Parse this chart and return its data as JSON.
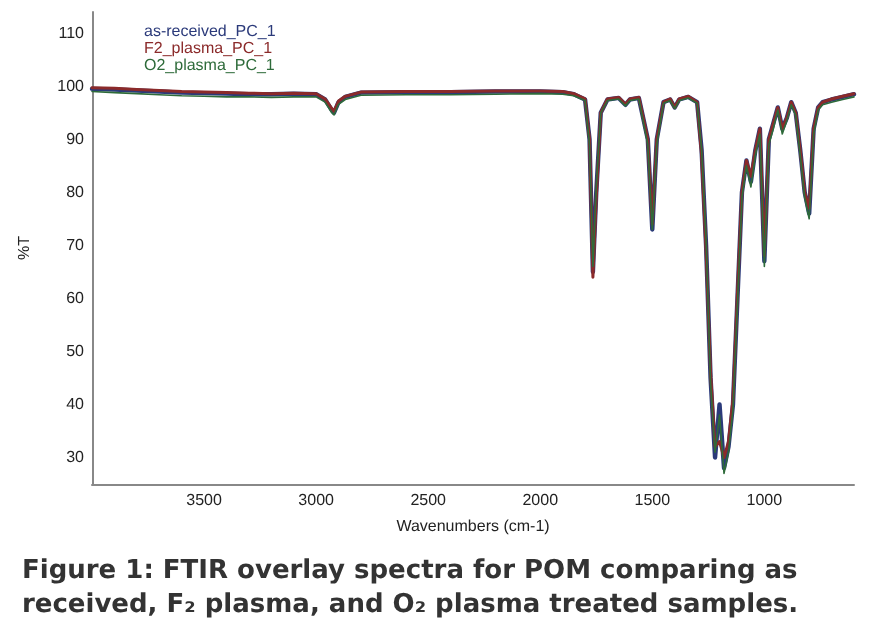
{
  "chart_data": {
    "type": "line",
    "title": "Figure 1: FTIR overlay spectra for POM comparing as received, F₂ plasma, and O₂ plasma treated samples.",
    "xlabel": "Wavenumbers (cm-1)",
    "ylabel": "%T",
    "xlim": [
      4000,
      600
    ],
    "xticks": [
      3500,
      3000,
      2500,
      2000,
      1500,
      1000
    ],
    "ylim": [
      25,
      114
    ],
    "yticks": [
      30,
      40,
      50,
      60,
      70,
      80,
      90,
      100,
      110
    ],
    "grid": false,
    "legend": "top left",
    "marker": "none",
    "line_style": "solid",
    "x": [
      4000,
      3900,
      3800,
      3700,
      3600,
      3500,
      3400,
      3300,
      3200,
      3100,
      3000,
      2960,
      2930,
      2920,
      2900,
      2870,
      2800,
      2600,
      2400,
      2200,
      2000,
      1900,
      1850,
      1800,
      1780,
      1765,
      1750,
      1730,
      1700,
      1650,
      1620,
      1600,
      1560,
      1520,
      1500,
      1480,
      1450,
      1420,
      1400,
      1380,
      1340,
      1300,
      1280,
      1260,
      1240,
      1220,
      1200,
      1180,
      1160,
      1140,
      1120,
      1100,
      1080,
      1060,
      1040,
      1020,
      1000,
      980,
      960,
      940,
      920,
      900,
      880,
      860,
      840,
      820,
      800,
      780,
      760,
      740,
      700,
      650,
      600
    ],
    "series": [
      {
        "name": "as-received_PC_1",
        "color": "#2b3a7a",
        "values": [
          99.5,
          99.4,
          99.2,
          99,
          98.8,
          98.7,
          98.6,
          98.5,
          98.5,
          98.6,
          98.5,
          97.5,
          95.5,
          95,
          97,
          98,
          98.8,
          98.9,
          98.9,
          99,
          99,
          98.9,
          98.5,
          97.5,
          90,
          65,
          80,
          95,
          97.5,
          97.8,
          96.5,
          97.5,
          97.8,
          90,
          73,
          90,
          97,
          97.5,
          96,
          97.5,
          98,
          97,
          88,
          70,
          45,
          30,
          40,
          28,
          32,
          40,
          60,
          80,
          86,
          82,
          88,
          92,
          67,
          90,
          93,
          96,
          92,
          94,
          97,
          95,
          88,
          80,
          76,
          92,
          96,
          97,
          97.5,
          98,
          98.5
        ]
      },
      {
        "name": "F2_plasma_PC_1",
        "color": "#8b2a2a",
        "values": [
          99.7,
          99.6,
          99.4,
          99.2,
          99,
          98.9,
          98.8,
          98.7,
          98.6,
          98.7,
          98.6,
          97.6,
          95.8,
          95.3,
          97.2,
          98.1,
          98.9,
          99,
          99,
          99.1,
          99.1,
          99,
          98.6,
          97.6,
          90,
          64,
          79,
          95,
          97.6,
          97.9,
          96.6,
          97.6,
          97.9,
          90,
          74,
          90,
          97,
          97.6,
          96,
          97.6,
          98.1,
          97,
          87,
          69,
          46,
          32,
          33,
          30,
          33,
          41,
          61,
          80,
          86,
          83,
          88,
          92,
          68,
          90,
          93,
          96,
          92,
          94,
          97,
          95,
          88,
          80,
          77,
          92,
          96,
          97,
          97.6,
          98.1,
          98.6
        ]
      },
      {
        "name": "O2_plasma_PC_1",
        "color": "#2e6b3a",
        "values": [
          99,
          98.8,
          98.6,
          98.4,
          98.2,
          98.1,
          98,
          98,
          97.9,
          98,
          98,
          97,
          95,
          94.6,
          96.6,
          97.5,
          98.3,
          98.4,
          98.4,
          98.5,
          98.6,
          98.5,
          98.2,
          97.3,
          89,
          66,
          81,
          95,
          97.3,
          97.6,
          96.3,
          97.3,
          97.6,
          89,
          73,
          89,
          96.8,
          97.3,
          95.8,
          97.3,
          97.8,
          96.8,
          88,
          71,
          44,
          31,
          38,
          27,
          31,
          39,
          59,
          79,
          85,
          81,
          87,
          91,
          66,
          89,
          92,
          95.5,
          91,
          93.5,
          96.5,
          94.5,
          87,
          79,
          75,
          91,
          95.5,
          96.5,
          97,
          97.5,
          98
        ]
      }
    ]
  }
}
